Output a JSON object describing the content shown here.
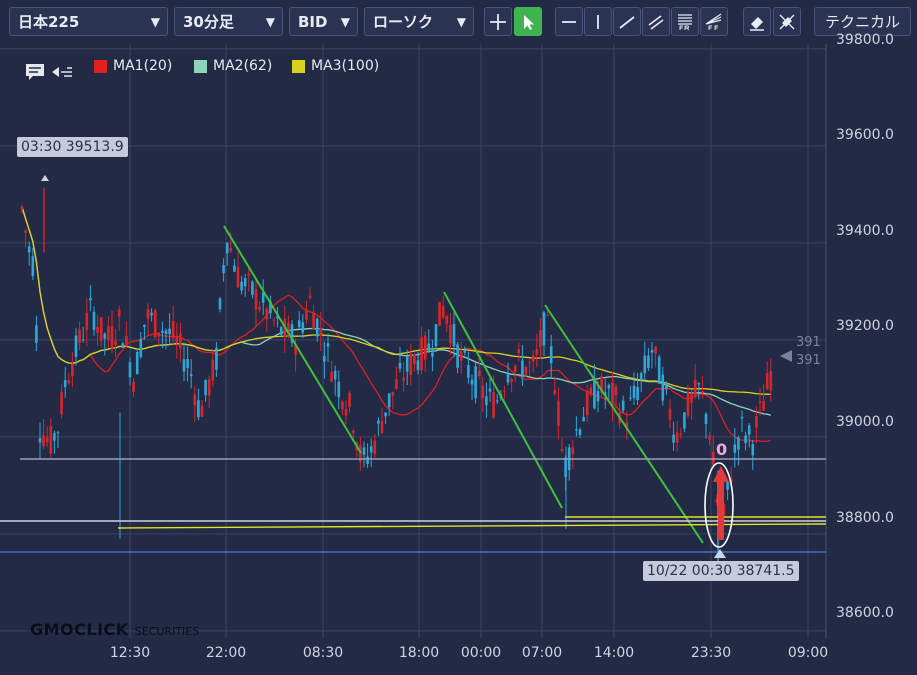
{
  "toolbar": {
    "symbol": "日本225",
    "timeframe": "30分足",
    "price_type": "BID",
    "chart_style": "ローソク",
    "technical_label": "テクニカル",
    "icons": [
      "crosshair-icon",
      "pointer-icon",
      "horizontal-line-icon",
      "vertical-line-icon",
      "trend-line-icon",
      "channel-line-icon",
      "fibonacci-retracement-icon",
      "fibonacci-fan-icon",
      "eraser-icon",
      "erase-all-icon"
    ]
  },
  "legend": [
    {
      "label": "MA1(20)",
      "color": "#e01f1f"
    },
    {
      "label": "MA2(62)",
      "color": "#8fd3b8"
    },
    {
      "label": "MA3(100)",
      "color": "#d9d21c"
    }
  ],
  "callouts": {
    "high": "03:30 39513.9",
    "low": "10/22 00:30 38741.5",
    "marker": "0"
  },
  "last_price": {
    "line1": "391",
    "line2": "391"
  },
  "logo": {
    "main": "GMOCLICK",
    "sub": "SECURITIES"
  },
  "chart_data": {
    "type": "candlestick",
    "y_ticks": [
      "39800.0",
      "39600.0",
      "39400.0",
      "39200.0",
      "39000.0",
      "38800.0",
      "38600.0"
    ],
    "x_ticks": [
      "12:30",
      "22:00",
      "08:30",
      "18:00",
      "00:00",
      "07:00",
      "14:00",
      "23:30",
      "09:00"
    ],
    "ylim": [
      38540,
      39810
    ],
    "up_color": "#d8262b",
    "down_color": "#2fa7d8",
    "grid": true
  }
}
